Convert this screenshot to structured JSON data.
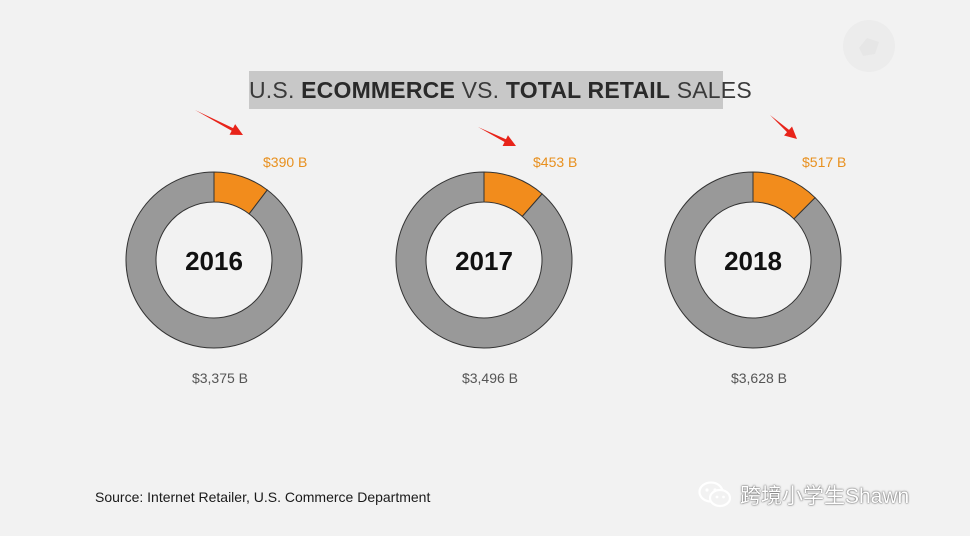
{
  "title": {
    "prefix": "U.S. ",
    "bold1": "ECOMMERCE",
    "middle": " VS. ",
    "bold2": "TOTAL RETAIL",
    "suffix": " SALES"
  },
  "colors": {
    "ecommerce": "#f28c1c",
    "total_retail": "#999999",
    "ecommerce_label": "#e8901e",
    "total_label": "#555555",
    "arrow": "#e8241a",
    "background": "#f2f2f2"
  },
  "chart_data": [
    {
      "type": "pie",
      "center_label": "2016",
      "slices": [
        {
          "label": "$390 B",
          "value": 390,
          "color": "#f28c1c"
        },
        {
          "label": "$3,375 B",
          "value": 3375,
          "color": "#999999"
        }
      ]
    },
    {
      "type": "pie",
      "center_label": "2017",
      "slices": [
        {
          "label": "$453 B",
          "value": 453,
          "color": "#f28c1c"
        },
        {
          "label": "$3,496 B",
          "value": 3496,
          "color": "#999999"
        }
      ]
    },
    {
      "type": "pie",
      "center_label": "2018",
      "slices": [
        {
          "label": "$517 B",
          "value": 517,
          "color": "#f28c1c"
        },
        {
          "label": "$3,628 B",
          "value": 3628,
          "color": "#999999"
        }
      ]
    }
  ],
  "source": "Source: Internet Retailer, U.S. Commerce Department",
  "watermark": {
    "text": "跨境小学生Shawn",
    "icon": "wechat-icon"
  }
}
